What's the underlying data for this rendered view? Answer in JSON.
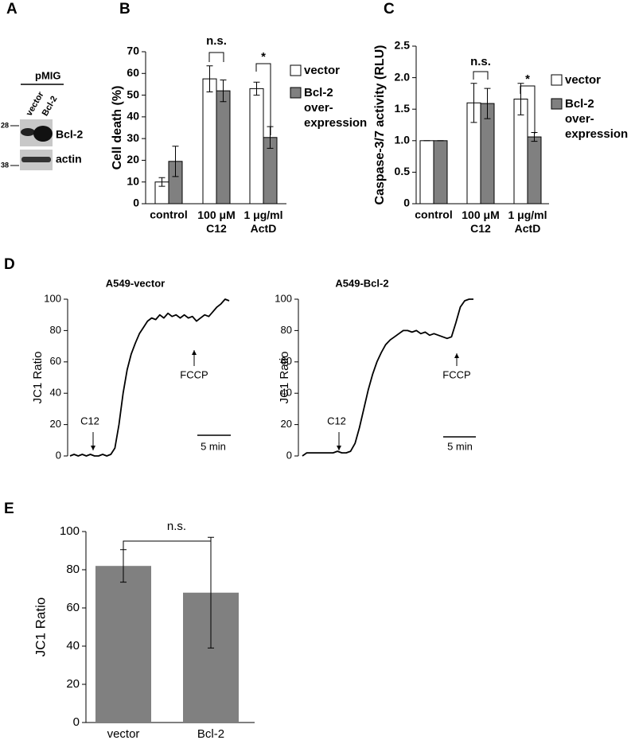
{
  "blot": {
    "panel": "A",
    "header": "pMIG",
    "lanes": [
      "vector",
      "Bcl-2"
    ],
    "markers": [
      "28",
      "38"
    ],
    "bands": [
      "Bcl-2",
      "actin"
    ]
  },
  "chart_data": [
    {
      "panel": "B",
      "type": "bar",
      "y_label": "Cell death (%)",
      "categories": [
        "control",
        "100 μM\nC12",
        "1 μg/ml\nActD"
      ],
      "series": [
        {
          "name": "vector",
          "color": "#ffffff",
          "values": [
            10,
            57.5,
            53
          ],
          "errors": [
            2,
            6,
            3
          ]
        },
        {
          "name": "Bcl-2\nover-\nexpression",
          "color": "#808080",
          "values": [
            19.5,
            52,
            30.5
          ],
          "errors": [
            7,
            5,
            5
          ]
        }
      ],
      "ylim": [
        0,
        70
      ],
      "yticks": [
        0,
        10,
        20,
        30,
        40,
        50,
        60,
        70
      ],
      "annotations": [
        "n.s.",
        "*"
      ]
    },
    {
      "panel": "C",
      "type": "bar",
      "y_label": "Caspase-3/7 activity (RLU)",
      "categories": [
        "control",
        "100 μM\nC12",
        "1 μg/ml\nActD"
      ],
      "series": [
        {
          "name": "vector",
          "color": "#ffffff",
          "values": [
            1,
            1.6,
            1.66
          ],
          "errors": [
            0,
            0.31,
            0.25
          ]
        },
        {
          "name": "Bcl-2\nover-\nexpression",
          "color": "#808080",
          "values": [
            1,
            1.59,
            1.06
          ],
          "errors": [
            0,
            0.24,
            0.07
          ]
        }
      ],
      "ylim": [
        0,
        2.5
      ],
      "yticks": [
        0,
        0.5,
        {
          "value": 1,
          "label": "1.0"
        },
        1.5,
        {
          "value": 2,
          "label": "2.0"
        },
        2.5
      ],
      "annotations": [
        "n.s.",
        "*"
      ]
    },
    {
      "panel": "D",
      "type": "line",
      "title": "A549-vector",
      "y_label": "JC1 Ratio",
      "series": [
        {
          "color": "#000000",
          "values": [
            0,
            1,
            0,
            1,
            0,
            1,
            0,
            0,
            1,
            0,
            1,
            5,
            20,
            40,
            55,
            65,
            72,
            78,
            82,
            86,
            88,
            87,
            90,
            88,
            91,
            89,
            90,
            88,
            90,
            88,
            89,
            86,
            88,
            90,
            89,
            92,
            95,
            97,
            100,
            99
          ]
        }
      ],
      "ylim": [
        0,
        100
      ],
      "yticks": [
        0,
        20,
        40,
        60,
        80,
        100
      ],
      "annotations": [
        "C12",
        "FCCP",
        "5 min"
      ]
    },
    {
      "type": "line",
      "title": "A549-Bcl-2",
      "y_label": "JC1 Ratio",
      "series": [
        {
          "color": "#000000",
          "values": [
            0,
            2,
            2,
            2,
            2,
            2,
            2,
            2,
            3,
            2,
            2,
            3,
            8,
            18,
            30,
            42,
            52,
            60,
            66,
            71,
            74,
            76,
            78,
            80,
            80,
            79,
            80,
            78,
            79,
            77,
            78,
            77,
            76,
            75,
            76,
            85,
            95,
            99,
            100,
            100
          ]
        }
      ],
      "ylim": [
        0,
        100
      ],
      "yticks": [
        0,
        20,
        40,
        60,
        80,
        100
      ],
      "annotations": [
        "C12",
        "FCCP",
        "5 min"
      ]
    },
    {
      "panel": "E",
      "type": "bar",
      "y_label": "JC1 Ratio",
      "categories": [
        "vector",
        "Bcl-2"
      ],
      "values": [
        82,
        68
      ],
      "errors": [
        8.5,
        29
      ],
      "color": "#808080",
      "ylim": [
        0,
        100
      ],
      "yticks": [
        0,
        20,
        40,
        60,
        80,
        100
      ],
      "annotations": [
        "n.s."
      ]
    }
  ]
}
